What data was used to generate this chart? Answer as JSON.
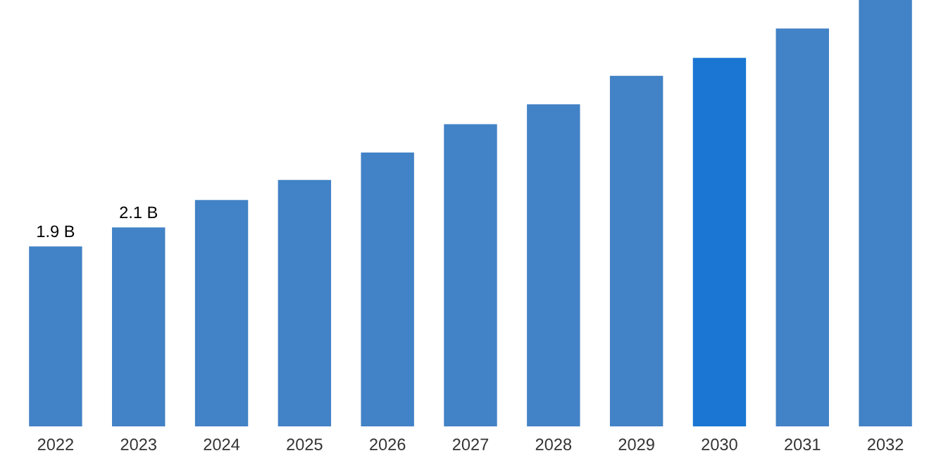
{
  "chart_data": {
    "type": "bar",
    "categories": [
      "2022",
      "2023",
      "2024",
      "2025",
      "2026",
      "2027",
      "2028",
      "2029",
      "2030",
      "2031",
      "2032"
    ],
    "values": [
      1.9,
      2.1,
      2.39,
      2.6,
      2.89,
      3.19,
      3.4,
      3.7,
      3.89,
      4.2,
      4.5
    ],
    "value_labels": [
      "1.9 B",
      "2.1 B",
      null,
      null,
      null,
      null,
      null,
      null,
      null,
      null,
      null
    ],
    "colors": [
      "#4282c6",
      "#4282c6",
      "#4282c6",
      "#4282c6",
      "#4282c6",
      "#4282c6",
      "#4282c6",
      "#4282c6",
      "#1a76d2",
      "#4282c6",
      "#4282c6"
    ],
    "ylim": [
      0,
      4.5
    ],
    "tick_labels": "x",
    "grid": false,
    "legend": false
  }
}
